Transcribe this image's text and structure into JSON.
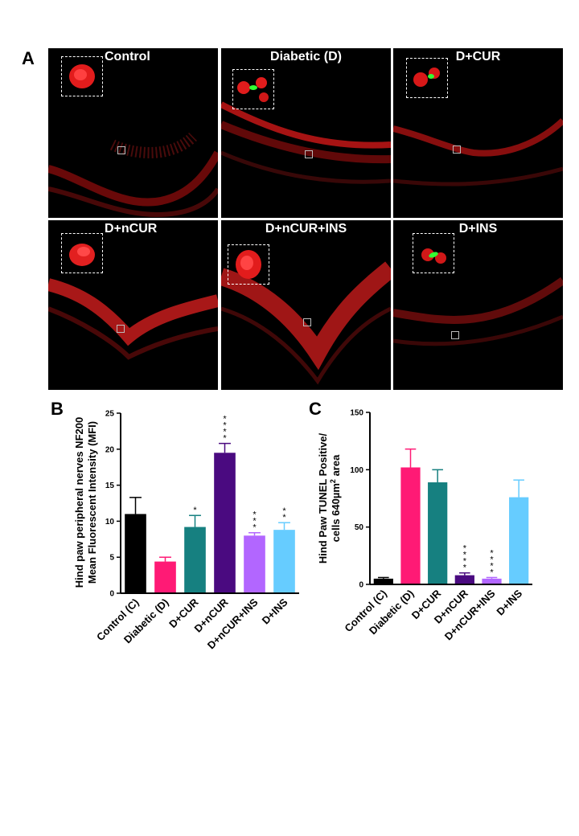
{
  "panels": {
    "a_letter": "A",
    "b_letter": "B",
    "c_letter": "C"
  },
  "micrographs": [
    {
      "label": "Control"
    },
    {
      "label": "Diabetic (D)"
    },
    {
      "label": "D+CUR"
    },
    {
      "label": "D+nCUR"
    },
    {
      "label": "D+nCUR+INS"
    },
    {
      "label": "D+INS"
    }
  ],
  "colors": {
    "Control (C)": "#000000",
    "Diabetic (D)": "#ff1a75",
    "D+CUR": "#168080",
    "D+nCUR": "#4a0a80",
    "D+nCUR+INS": "#b266ff",
    "D+INS": "#66ccff"
  },
  "chart_data": [
    {
      "type": "bar",
      "categories": [
        "Control (C)",
        "Diabetic (D)",
        "D+CUR",
        "D+nCUR",
        "D+nCUR+INS",
        "D+INS"
      ],
      "values": [
        11.0,
        4.4,
        9.2,
        19.5,
        8.0,
        8.8
      ],
      "errors": [
        2.3,
        0.6,
        1.6,
        1.3,
        0.4,
        1.0
      ],
      "significance": [
        "",
        "",
        "*",
        "****",
        "***",
        "**"
      ],
      "ylabel_lines": [
        "Hind paw peripheral nerves NF200",
        "Mean Fluorescent Intensity (MFI)"
      ],
      "ylim": [
        0,
        25
      ],
      "yticks": [
        0,
        5,
        10,
        15,
        20,
        25
      ]
    },
    {
      "type": "bar",
      "categories": [
        "Control (C)",
        "Diabetic (D)",
        "D+CUR",
        "D+nCUR",
        "D+nCUR+INS",
        "D+INS"
      ],
      "values": [
        5,
        102,
        89,
        8,
        5,
        76
      ],
      "errors": [
        1,
        16,
        11,
        2,
        1,
        15
      ],
      "significance": [
        "",
        "",
        "",
        "****",
        "****",
        ""
      ],
      "ylabel_line1": "Hind Paw TUNEL Positive/",
      "ylabel_line2_pre": "cells 640µm",
      "ylabel_line2_sup": "2",
      "ylabel_line2_post": " area",
      "ylim": [
        0,
        150
      ],
      "yticks": [
        0,
        50,
        100,
        150
      ]
    }
  ]
}
